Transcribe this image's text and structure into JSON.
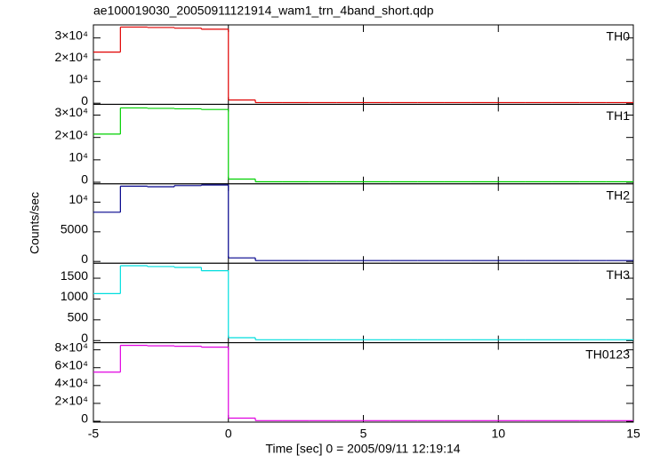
{
  "chart_data": [
    {
      "type": "histogram",
      "title": "ae100019030_20050911121914_wam1_trn_4band_short.qdp",
      "bins": [
        -5,
        -4,
        -3,
        -2,
        -1,
        0,
        1,
        2,
        3,
        4,
        5,
        6,
        7,
        8,
        9,
        10,
        11,
        12,
        13,
        14,
        15
      ],
      "series": [
        {
          "name": "TH0",
          "color": "#e00000",
          "values": [
            23500,
            35000,
            34800,
            34500,
            34000,
            1500,
            300,
            300,
            300,
            300,
            300,
            300,
            300,
            300,
            300,
            300,
            300,
            300,
            300,
            300
          ]
        }
      ],
      "xlim": [
        -5,
        15
      ],
      "ylim": [
        -500,
        36000
      ],
      "yticks": [
        0,
        {
          "value": 10000,
          "label": "10⁴"
        },
        {
          "value": 20000,
          "label": "2×10⁴"
        },
        {
          "value": 30000,
          "label": "3×10⁴"
        }
      ]
    },
    {
      "type": "histogram",
      "bins": [
        -5,
        -4,
        -3,
        -2,
        -1,
        0,
        1,
        2,
        3,
        4,
        5,
        6,
        7,
        8,
        9,
        10,
        11,
        12,
        13,
        14,
        15
      ],
      "series": [
        {
          "name": "TH1",
          "color": "#00d000",
          "values": [
            21500,
            33200,
            33000,
            32800,
            32500,
            1400,
            200,
            200,
            200,
            200,
            200,
            200,
            200,
            200,
            200,
            200,
            200,
            200,
            200,
            200
          ]
        }
      ],
      "xlim": [
        -5,
        15
      ],
      "ylim": [
        -700,
        34800
      ],
      "yticks": [
        0,
        {
          "value": 10000,
          "label": "10⁴"
        },
        {
          "value": 20000,
          "label": "2×10⁴"
        },
        {
          "value": 30000,
          "label": "3×10⁴"
        }
      ]
    },
    {
      "type": "histogram",
      "y_label": "Counts/sec",
      "bins": [
        -5,
        -4,
        -3,
        -2,
        -1,
        0,
        1,
        2,
        3,
        4,
        5,
        6,
        7,
        8,
        9,
        10,
        11,
        12,
        13,
        14,
        15
      ],
      "series": [
        {
          "name": "TH2",
          "color": "#00008b",
          "values": [
            8300,
            12700,
            12600,
            12800,
            12900,
            600,
            150,
            150,
            150,
            150,
            150,
            150,
            150,
            150,
            150,
            150,
            150,
            150,
            150,
            150
          ]
        }
      ],
      "xlim": [
        -5,
        15
      ],
      "ylim": [
        -300,
        13100
      ],
      "yticks": [
        0,
        5000,
        {
          "value": 10000,
          "label": "10⁴"
        }
      ]
    },
    {
      "type": "histogram",
      "bins": [
        -5,
        -4,
        -3,
        -2,
        -1,
        0,
        1,
        2,
        3,
        4,
        5,
        6,
        7,
        8,
        9,
        10,
        11,
        12,
        13,
        14,
        15
      ],
      "series": [
        {
          "name": "TH3",
          "color": "#00dede",
          "values": [
            1130,
            1800,
            1780,
            1760,
            1680,
            70,
            20,
            20,
            20,
            20,
            20,
            20,
            20,
            20,
            20,
            20,
            20,
            20,
            20,
            20
          ]
        }
      ],
      "xlim": [
        -5,
        15
      ],
      "ylim": [
        -50,
        1860
      ],
      "yticks": [
        0,
        500,
        1000,
        1500
      ]
    },
    {
      "type": "histogram",
      "x_label": "Time [sec] 0 = 2005/09/11 12:19:14",
      "bins": [
        -5,
        -4,
        -3,
        -2,
        -1,
        0,
        1,
        2,
        3,
        4,
        5,
        6,
        7,
        8,
        9,
        10,
        11,
        12,
        13,
        14,
        15
      ],
      "series": [
        {
          "name": "TH0123",
          "color": "#e000e0",
          "values": [
            55000,
            85000,
            84500,
            84000,
            83000,
            3500,
            700,
            700,
            700,
            700,
            700,
            700,
            700,
            700,
            700,
            700,
            700,
            700,
            700,
            700
          ]
        }
      ],
      "xlim": [
        -5,
        15
      ],
      "ylim": [
        -1000,
        88000
      ],
      "xticks": [
        -5,
        0,
        5,
        10,
        15
      ],
      "yticks": [
        0,
        {
          "value": 20000,
          "label": "2×10⁴"
        },
        {
          "value": 40000,
          "label": "4×10⁴"
        },
        {
          "value": 60000,
          "label": "6×10⁴"
        },
        {
          "value": 80000,
          "label": "8×10⁴"
        }
      ]
    }
  ]
}
